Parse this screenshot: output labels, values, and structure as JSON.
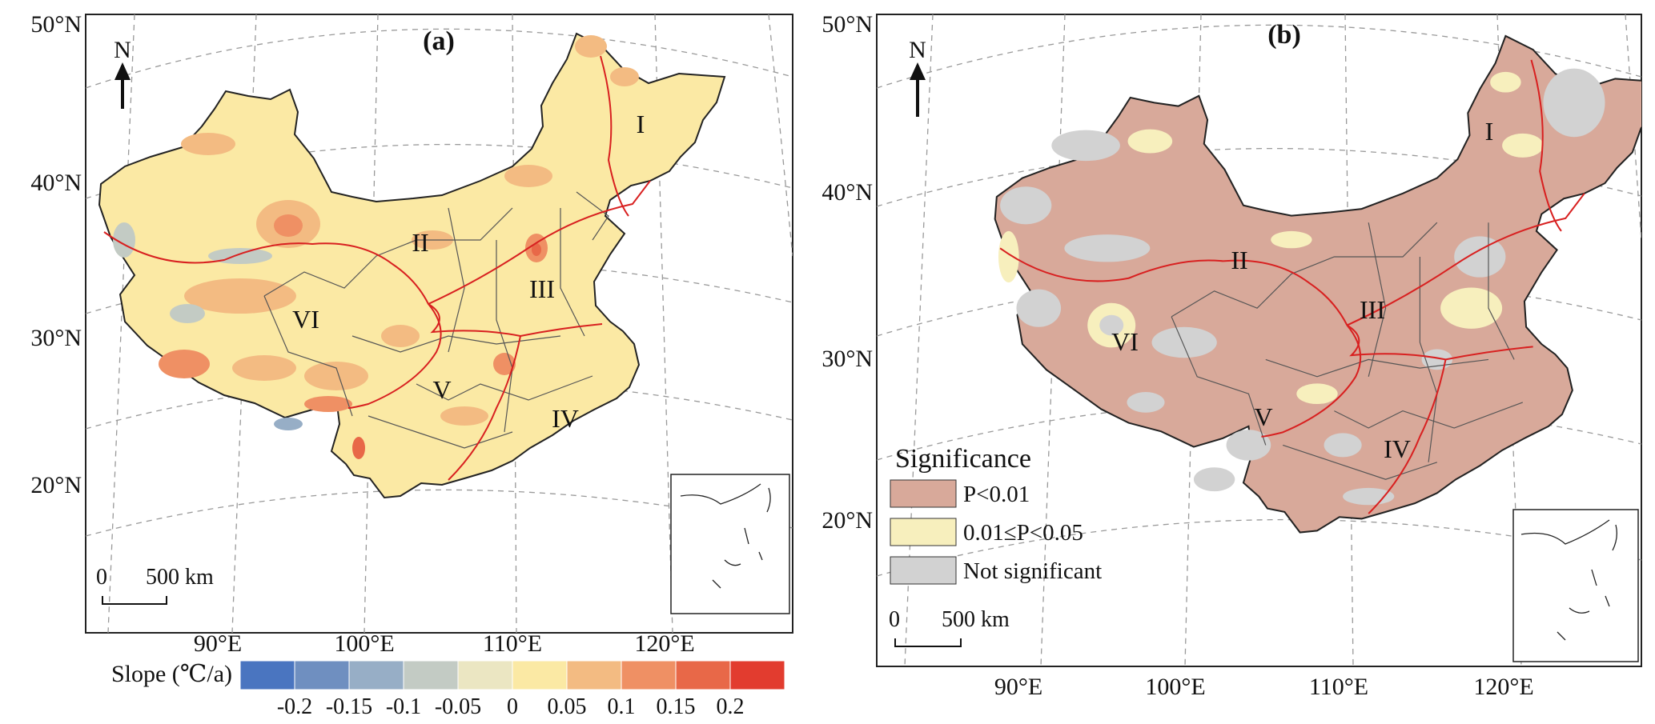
{
  "panels": [
    {
      "id": "a",
      "title": "(a)",
      "lat_labels": [
        "50°N",
        "40°N",
        "30°N",
        "20°N"
      ],
      "lon_labels": [
        "90°E",
        "100°E",
        "110°E",
        "120°E"
      ],
      "north": "N",
      "scalebar": {
        "zero": "0",
        "label": "500 km"
      },
      "regions": [
        "I",
        "II",
        "III",
        "IV",
        "V",
        "VI"
      ],
      "colorbar": {
        "title": "Slope (℃/a)",
        "ticks": [
          "-0.2",
          "-0.15",
          "-0.1",
          "-0.05",
          "0",
          "0.05",
          "0.1",
          "0.15",
          "0.2"
        ],
        "colors": [
          "#4a75c0",
          "#6f8fc0",
          "#97aec6",
          "#c3cbc4",
          "#ebe6c2",
          "#fbe9a4",
          "#f3bb82",
          "#ef9064",
          "#e86848",
          "#e23c2f"
        ]
      }
    },
    {
      "id": "b",
      "title": "(b)",
      "lat_labels": [
        "50°N",
        "40°N",
        "30°N",
        "20°N"
      ],
      "lon_labels": [
        "90°E",
        "100°E",
        "110°E",
        "120°E"
      ],
      "north": "N",
      "scalebar": {
        "zero": "0",
        "label": "500 km"
      },
      "regions": [
        "I",
        "II",
        "III",
        "IV",
        "V",
        "VI"
      ],
      "legend": {
        "title": "Significance",
        "items": [
          {
            "label": "P<0.01",
            "color": "#d8a99a"
          },
          {
            "label": "0.01≤P<0.05",
            "color": "#f7efbd"
          },
          {
            "label": "Not significant",
            "color": "#d2d2d2"
          }
        ]
      }
    }
  ]
}
